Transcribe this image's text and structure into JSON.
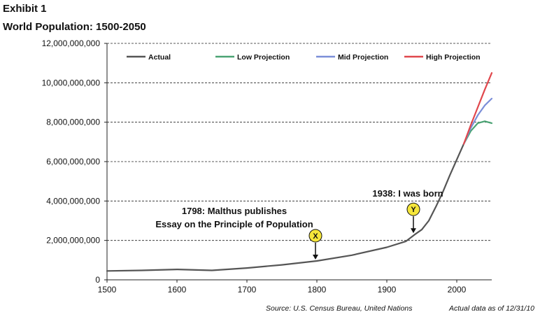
{
  "header": {
    "exhibit": "Exhibit 1",
    "title": "World Population: 1500-2050"
  },
  "chart_data": {
    "type": "line",
    "title": "World Population: 1500-2050",
    "xlabel": "",
    "ylabel": "",
    "xlim": [
      1500,
      2050
    ],
    "ylim": [
      0,
      12000000000
    ],
    "x_ticks": [
      1500,
      1600,
      1700,
      1800,
      1900,
      2000
    ],
    "y_ticks": [
      0,
      2000000000,
      4000000000,
      6000000000,
      8000000000,
      10000000000,
      12000000000
    ],
    "y_tick_labels": [
      "0",
      "2,000,000,000",
      "4,000,000,000",
      "6,000,000,000",
      "8,000,000,000",
      "10,000,000,000",
      "12,000,000,000"
    ],
    "grid": "horizontal dashed",
    "legend_position": "top",
    "series": [
      {
        "name": "Actual",
        "color": "#555555",
        "points": [
          [
            1500,
            450000000
          ],
          [
            1550,
            480000000
          ],
          [
            1600,
            530000000
          ],
          [
            1650,
            480000000
          ],
          [
            1700,
            600000000
          ],
          [
            1750,
            760000000
          ],
          [
            1800,
            960000000
          ],
          [
            1850,
            1250000000
          ],
          [
            1900,
            1650000000
          ],
          [
            1927,
            1950000000
          ],
          [
            1940,
            2300000000
          ],
          [
            1950,
            2550000000
          ],
          [
            1960,
            3000000000
          ],
          [
            1970,
            3700000000
          ],
          [
            1980,
            4450000000
          ],
          [
            1990,
            5300000000
          ],
          [
            2000,
            6100000000
          ],
          [
            2010,
            6900000000
          ]
        ]
      },
      {
        "name": "Low Projection",
        "color": "#4aa373",
        "points": [
          [
            2010,
            6900000000
          ],
          [
            2020,
            7550000000
          ],
          [
            2030,
            7950000000
          ],
          [
            2040,
            8050000000
          ],
          [
            2050,
            7950000000
          ]
        ]
      },
      {
        "name": "Mid Projection",
        "color": "#7b8ed8",
        "points": [
          [
            2010,
            6900000000
          ],
          [
            2020,
            7700000000
          ],
          [
            2030,
            8350000000
          ],
          [
            2040,
            8850000000
          ],
          [
            2050,
            9200000000
          ]
        ]
      },
      {
        "name": "High Projection",
        "color": "#e0474c",
        "points": [
          [
            2010,
            6900000000
          ],
          [
            2020,
            7850000000
          ],
          [
            2030,
            8750000000
          ],
          [
            2040,
            9650000000
          ],
          [
            2050,
            10500000000
          ]
        ]
      }
    ],
    "annotations": [
      {
        "marker": "X",
        "year": 1798,
        "value": 960000000,
        "text_lines": [
          "1798: Malthus publishes",
          "Essay on the Principle of Population"
        ]
      },
      {
        "marker": "Y",
        "year": 1938,
        "value": 2300000000,
        "text_lines": [
          "1938: I was born"
        ]
      }
    ],
    "source": "Source: U.S. Census Bureau, United Nations",
    "note": "Actual data as of 12/31/10"
  }
}
